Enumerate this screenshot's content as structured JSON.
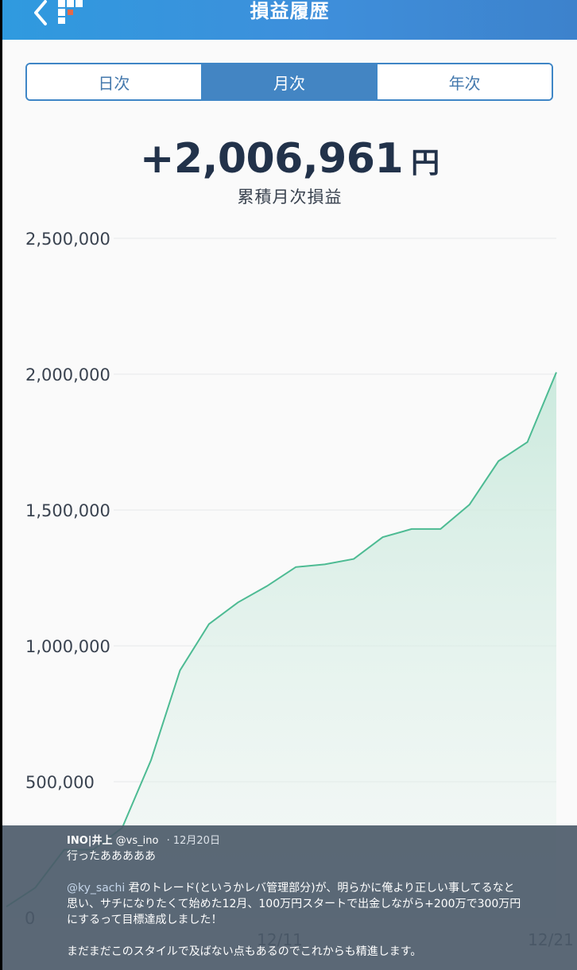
{
  "header": {
    "title": "損益履歴",
    "back_icon": "chevron-left-icon",
    "logo_icon": "app-logo-icon"
  },
  "tabs": [
    {
      "label": "日次",
      "active": false
    },
    {
      "label": "月次",
      "active": true
    },
    {
      "label": "年次",
      "active": false
    }
  ],
  "summary": {
    "value": "+2,006,961",
    "unit": "円",
    "label": "累積月次損益"
  },
  "chart_data": {
    "type": "area",
    "title": "",
    "xlabel": "",
    "ylabel": "",
    "ylim": [
      0,
      2500000
    ],
    "y_ticks": [
      "0",
      "500,000",
      "1,000,000",
      "1,500,000",
      "2,000,000",
      "2,500,000"
    ],
    "x_ticks": [
      "12/11",
      "12/21"
    ],
    "grid": true,
    "color": "#4dbb93",
    "fill_color": "#cdeadf",
    "x": [
      "12/2",
      "12/3",
      "12/4",
      "12/5",
      "12/6",
      "12/7",
      "12/8",
      "12/9",
      "12/10",
      "12/11",
      "12/12",
      "12/13",
      "12/14",
      "12/15",
      "12/16",
      "12/17",
      "12/18",
      "12/19",
      "12/20",
      "12/21"
    ],
    "values": [
      40000,
      110000,
      250000,
      250000,
      330000,
      580000,
      910000,
      1080000,
      1160000,
      1220000,
      1290000,
      1300000,
      1320000,
      1400000,
      1430000,
      1430000,
      1520000,
      1680000,
      1750000,
      2006961
    ]
  },
  "tweet": {
    "name": "INO|井上",
    "handle": "@vs_ino",
    "date": "· 12月20日",
    "line1": "行ったあああああ",
    "mention": "@ky_sachi",
    "line2": " 君のトレード(というかレバ管理部分)が、明らかに俺より正しい事してるなと",
    "line3": "思い、サチになりたくて始めた12月、100万円スタートで出金しながら+200万で300万円",
    "line4": "にするって目標達成しました！",
    "line5": "まだまだこのスタイルで及ばない点もあるのでこれからも精進します。"
  }
}
